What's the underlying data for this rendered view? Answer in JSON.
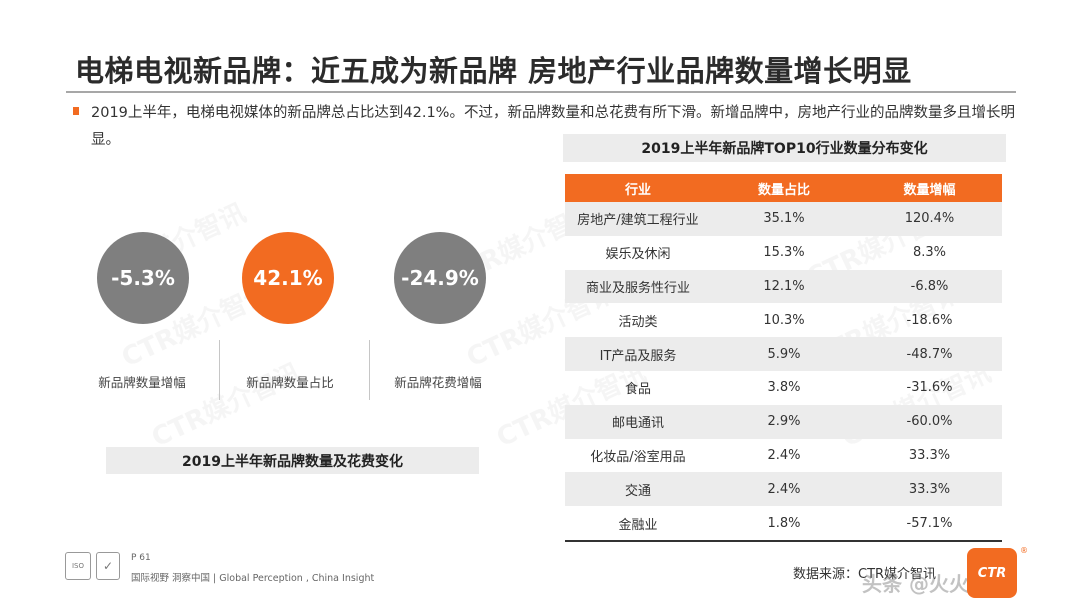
{
  "title": "电梯电视新品牌：近五成为新品牌 房地产行业品牌数量增长明显",
  "bullet": "2019上半年，电梯电视媒体的新品牌总占比达到42.1%。不过，新品牌数量和总花费有所下滑。新增品牌中，房地产行业的品牌数量多且增长明显。",
  "metrics": [
    {
      "value": "-5.3%",
      "label": "新品牌数量增幅",
      "color": "#7f7f7f"
    },
    {
      "value": "42.1%",
      "label": "新品牌数量占比",
      "color": "#f26b21"
    },
    {
      "value": "-24.9%",
      "label": "新品牌花费增幅",
      "color": "#7f7f7f"
    }
  ],
  "left_caption": "2019上半年新品牌数量及花费变化",
  "table_caption": "2019上半年新品牌TOP10行业数量分布变化",
  "table": {
    "headers": [
      "行业",
      "数量占比",
      "数量增幅"
    ],
    "rows": [
      [
        "房地产/建筑工程行业",
        "35.1%",
        "120.4%"
      ],
      [
        "娱乐及休闲",
        "15.3%",
        "8.3%"
      ],
      [
        "商业及服务性行业",
        "12.1%",
        "-6.8%"
      ],
      [
        "活动类",
        "10.3%",
        "-18.6%"
      ],
      [
        "IT产品及服务",
        "5.9%",
        "-48.7%"
      ],
      [
        "食品",
        "3.8%",
        "-31.6%"
      ],
      [
        "邮电通讯",
        "2.9%",
        "-60.0%"
      ],
      [
        "化妆品/浴室用品",
        "2.4%",
        "33.3%"
      ],
      [
        "交通",
        "2.4%",
        "33.3%"
      ],
      [
        "金融业",
        "1.8%",
        "-57.1%"
      ]
    ]
  },
  "source": "数据来源：CTR媒介智讯",
  "footer": {
    "page": "P 61",
    "slogan": "国际视野 洞察中国 | Global Perception , China Insight",
    "badge_a": "ISO",
    "badge_b": "✓"
  },
  "watermark": "CTR媒介智讯",
  "logo_text": "CTR",
  "logo_mark": "®",
  "overlay_mark": "头条 @火火财经",
  "colors": {
    "accent": "#f26b21",
    "grey": "#7f7f7f",
    "band": "#ececec"
  }
}
